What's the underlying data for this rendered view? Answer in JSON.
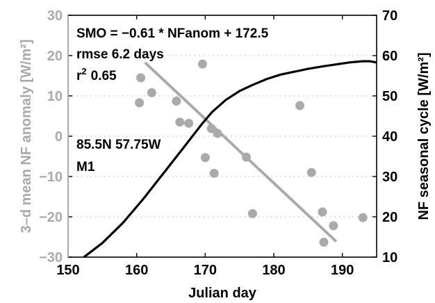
{
  "chart_data": {
    "type": "scatter",
    "x_axis": {
      "label": "Julian day",
      "range": [
        150,
        195
      ],
      "ticks": [
        150,
        160,
        170,
        180,
        190
      ],
      "tick_labels": [
        "150",
        "160",
        "170",
        "180",
        "190"
      ]
    },
    "y_left": {
      "label": "3–d mean NF anomaly [W/m²]",
      "range": [
        -30,
        30
      ],
      "ticks": [
        -30,
        -20,
        -10,
        0,
        10,
        20,
        30
      ],
      "tick_labels": [
        "−30",
        "−20",
        "−10",
        "0",
        "10",
        "20",
        "30"
      ]
    },
    "y_right": {
      "label": "NF seasonal cycle [W/m²]",
      "range": [
        10,
        70
      ],
      "ticks": [
        10,
        20,
        30,
        40,
        50,
        60,
        70
      ],
      "tick_labels": [
        "10",
        "20",
        "30",
        "40",
        "50",
        "60",
        "70"
      ]
    },
    "grid": "horizontal dotted",
    "colors": {
      "anomaly": "#aaaaaa",
      "seasonal": "#000000"
    },
    "series": [
      {
        "kind": "scatter",
        "axis": "left",
        "points": [
          [
            160.4,
            8.3
          ],
          [
            160.6,
            14.5
          ],
          [
            162.2,
            10.8
          ],
          [
            165.8,
            8.7
          ],
          [
            166.3,
            3.5
          ],
          [
            167.6,
            3.2
          ],
          [
            169.6,
            17.9
          ],
          [
            170,
            -5.3
          ],
          [
            170.9,
            1.9
          ],
          [
            171.3,
            -9.2
          ],
          [
            171.8,
            0.7
          ],
          [
            176,
            -5.2
          ],
          [
            176.9,
            -19.2
          ],
          [
            183.8,
            7.6
          ],
          [
            185.5,
            -9
          ],
          [
            187.1,
            -18.8
          ],
          [
            187.3,
            -26.3
          ],
          [
            188.7,
            -22.2
          ],
          [
            193,
            -20.2
          ]
        ]
      },
      {
        "kind": "line",
        "axis": "left",
        "points": [
          [
            161.2,
            18.3
          ],
          [
            189.1,
            -26.1
          ]
        ]
      },
      {
        "kind": "line",
        "axis": "right",
        "points": [
          [
            152.3,
            10
          ],
          [
            155,
            13.5
          ],
          [
            158,
            18.5
          ],
          [
            161,
            24.5
          ],
          [
            164,
            31
          ],
          [
            167,
            37.5
          ],
          [
            169.5,
            43
          ],
          [
            171,
            46
          ],
          [
            173,
            49
          ],
          [
            175,
            51.2
          ],
          [
            177,
            52.8
          ],
          [
            179,
            54.2
          ],
          [
            181,
            55.3
          ],
          [
            183,
            56
          ],
          [
            185,
            56.7
          ],
          [
            187,
            57.3
          ],
          [
            189,
            57.8
          ],
          [
            191,
            58.3
          ],
          [
            193,
            58.6
          ],
          [
            194,
            58.6
          ],
          [
            195,
            58.3
          ]
        ]
      }
    ],
    "annotations": [
      [
        "SMO = −0.61 * NFanom + 172.5",
        "rmse 6.2 days"
      ],
      [
        "85.5N 57.75W",
        "M1"
      ]
    ],
    "r2_label": {
      "prefix": "r",
      "sup": "2",
      "value": "0.65"
    }
  }
}
